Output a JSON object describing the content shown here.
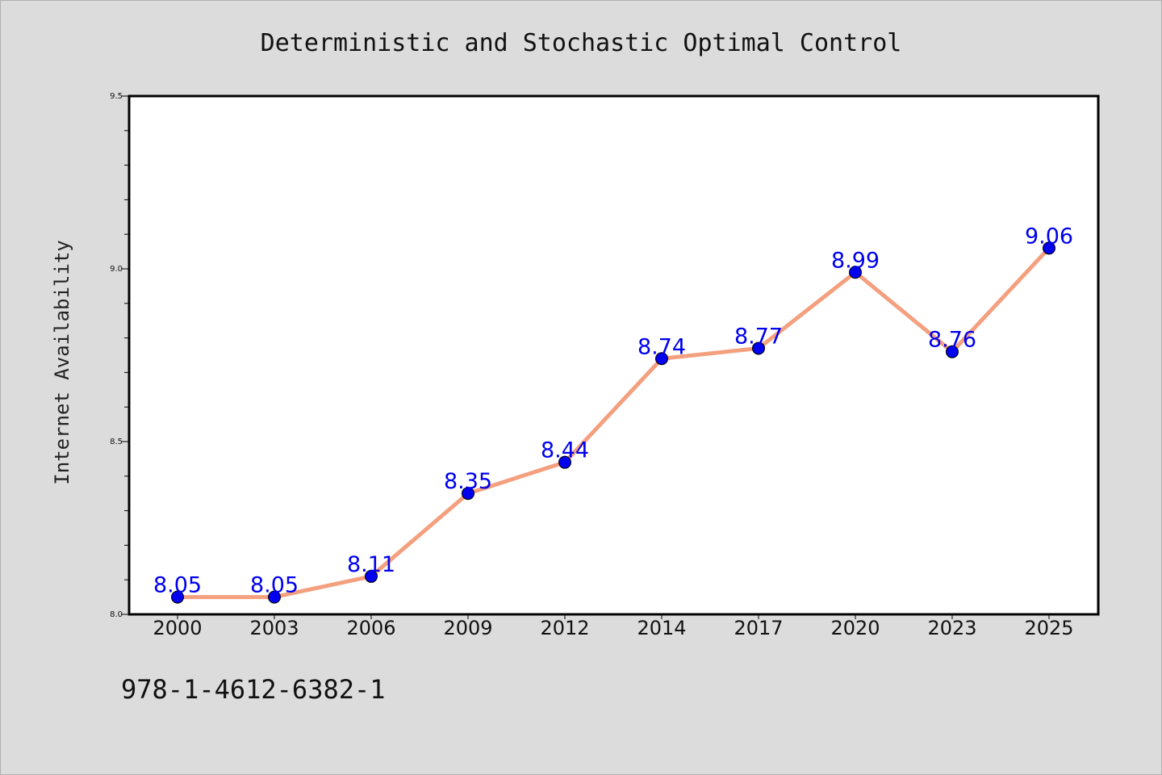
{
  "chart_data": {
    "type": "line",
    "title": "Deterministic and Stochastic Optimal Control",
    "xlabel": "",
    "ylabel": "Internet Availability",
    "categories": [
      "2000",
      "2003",
      "2006",
      "2009",
      "2012",
      "2014",
      "2017",
      "2020",
      "2023",
      "2025"
    ],
    "series": [
      {
        "values": [
          8.05,
          8.05,
          8.11,
          8.35,
          8.44,
          8.74,
          8.77,
          8.99,
          8.76,
          9.06
        ]
      }
    ],
    "data_labels": [
      "8.05",
      "8.05",
      "8.11",
      "8.35",
      "8.44",
      "8.74",
      "8.77",
      "8.99",
      "8.76",
      "9.06"
    ],
    "ylim": [
      8.0,
      9.5
    ],
    "yticks": [
      "8.0",
      "8.5",
      "9.0",
      "9.5"
    ],
    "grid": false,
    "legend": "none",
    "colors": {
      "line": "#f4a07f",
      "marker": "#0000ee",
      "label": "#0000ee"
    }
  },
  "footer": {
    "isbn": "978-1-4612-6382-1"
  }
}
